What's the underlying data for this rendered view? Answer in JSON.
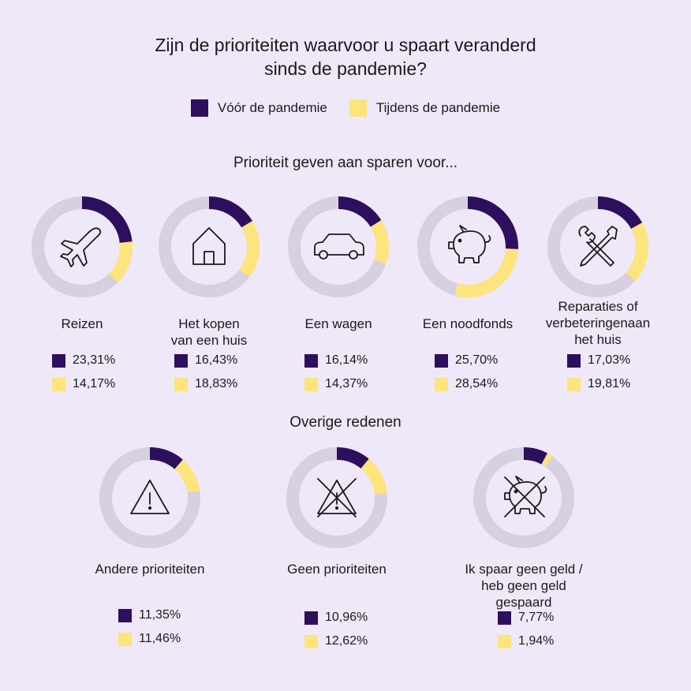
{
  "title_lines": [
    "Zijn de prioriteiten waarvoor u spaart veranderd",
    "sinds de pandemie?"
  ],
  "legend": [
    {
      "label": "Vóór de pandemie",
      "color": "#2e0f5e"
    },
    {
      "label": "Tijdens de pandemie",
      "color": "#fde47d"
    }
  ],
  "colors": {
    "before": "#2e0f5e",
    "during": "#fde47d",
    "track": "#d6d0e0"
  },
  "sections": {
    "top": "Prioriteit geven aan sparen voor...",
    "bottom": "Overige redenen"
  },
  "chart_data": {
    "type": "donut",
    "series": [
      {
        "name": "Vóór de pandemie"
      },
      {
        "name": "Tijdens de pandemie"
      }
    ],
    "items": [
      {
        "label_lines": [
          "Reizen"
        ],
        "icon": "airplane-icon",
        "before": 23.31,
        "during": 14.17,
        "before_text": "23,31%",
        "during_text": "14,17%"
      },
      {
        "label_lines": [
          "Het kopen",
          "van een huis"
        ],
        "icon": "house-icon",
        "before": 16.43,
        "during": 18.83,
        "before_text": "16,43%",
        "during_text": "18,83%"
      },
      {
        "label_lines": [
          "Een wagen"
        ],
        "icon": "car-icon",
        "before": 16.14,
        "during": 14.37,
        "before_text": "16,14%",
        "during_text": "14,37%"
      },
      {
        "label_lines": [
          "Een noodfonds"
        ],
        "icon": "piggy-bank-icon",
        "before": 25.7,
        "during": 28.54,
        "before_text": "25,70%",
        "during_text": "28,54%"
      },
      {
        "label_lines": [
          "Reparaties of",
          "verbeteringenaan",
          "het huis"
        ],
        "icon": "tools-icon",
        "before": 17.03,
        "during": 19.81,
        "before_text": "17,03%",
        "during_text": "19,81%"
      },
      {
        "label_lines": [
          "Andere prioriteiten"
        ],
        "icon": "warning-icon",
        "before": 11.35,
        "during": 11.46,
        "before_text": "11,35%",
        "during_text": "11,46%"
      },
      {
        "label_lines": [
          "Geen prioriteiten"
        ],
        "icon": "crossed-warning-icon",
        "before": 10.96,
        "during": 12.62,
        "before_text": "10,96%",
        "during_text": "12,62%"
      },
      {
        "label_lines": [
          "Ik spaar geen geld /",
          "heb geen geld gespaard"
        ],
        "icon": "crossed-piggy-bank-icon",
        "before": 7.77,
        "during": 1.94,
        "before_text": "7,77%",
        "during_text": "1,94%"
      }
    ]
  }
}
